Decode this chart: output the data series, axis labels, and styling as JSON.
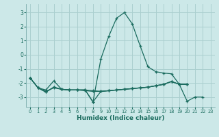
{
  "xlabel": "Humidex (Indice chaleur)",
  "background_color": "#cce8e8",
  "grid_color": "#aacfcf",
  "line_color": "#1a6b5e",
  "xlim": [
    -0.5,
    23.5
  ],
  "ylim": [
    -3.7,
    3.6
  ],
  "yticks": [
    -3,
    -2,
    -1,
    0,
    1,
    2,
    3
  ],
  "xticks": [
    0,
    1,
    2,
    3,
    4,
    5,
    6,
    7,
    8,
    9,
    10,
    11,
    12,
    13,
    14,
    15,
    16,
    17,
    18,
    19,
    20,
    21,
    22,
    23
  ],
  "line1_x": [
    0,
    1,
    2,
    3,
    4,
    5,
    6,
    7,
    8,
    9,
    10,
    11,
    12,
    13,
    14,
    15,
    16,
    17,
    18,
    19,
    20,
    21,
    22
  ],
  "line1_y": [
    -1.65,
    -2.35,
    -2.65,
    -2.3,
    -2.45,
    -2.5,
    -2.5,
    -2.5,
    -3.35,
    -0.3,
    1.3,
    2.6,
    3.0,
    2.2,
    0.65,
    -0.85,
    -1.2,
    -1.3,
    -1.35,
    -2.1,
    -3.3,
    -3.0,
    -3.0
  ],
  "line2_x": [
    0,
    1,
    2,
    3,
    4,
    5,
    6,
    7,
    8,
    9,
    10,
    11,
    12,
    13,
    14,
    15,
    16,
    17,
    18,
    19,
    20
  ],
  "line2_y": [
    -1.65,
    -2.35,
    -2.6,
    -2.35,
    -2.45,
    -2.5,
    -2.5,
    -2.55,
    -2.6,
    -2.6,
    -2.55,
    -2.5,
    -2.45,
    -2.4,
    -2.35,
    -2.3,
    -2.2,
    -2.1,
    -1.9,
    -2.1,
    -2.1
  ],
  "line3_x": [
    0,
    1,
    2,
    3,
    4,
    5,
    6,
    7,
    8,
    9,
    10,
    11,
    12,
    13,
    14,
    15,
    16,
    17,
    18,
    19,
    20
  ],
  "line3_y": [
    -1.65,
    -2.35,
    -2.5,
    -1.85,
    -2.45,
    -2.5,
    -2.5,
    -2.5,
    -2.55,
    -2.6,
    -2.55,
    -2.5,
    -2.45,
    -2.4,
    -2.35,
    -2.3,
    -2.2,
    -2.1,
    -1.9,
    -2.1,
    -2.1
  ],
  "line4_x": [
    0,
    1,
    2,
    3,
    4,
    5,
    6,
    7,
    8,
    9,
    10,
    11,
    12,
    13,
    14,
    15,
    16,
    17,
    18,
    19,
    20
  ],
  "line4_y": [
    -1.65,
    -2.35,
    -2.65,
    -2.3,
    -2.45,
    -2.5,
    -2.5,
    -2.5,
    -3.35,
    -2.6,
    -2.55,
    -2.5,
    -2.45,
    -2.4,
    -2.35,
    -2.3,
    -2.2,
    -2.1,
    -1.9,
    -2.1,
    -2.1
  ]
}
